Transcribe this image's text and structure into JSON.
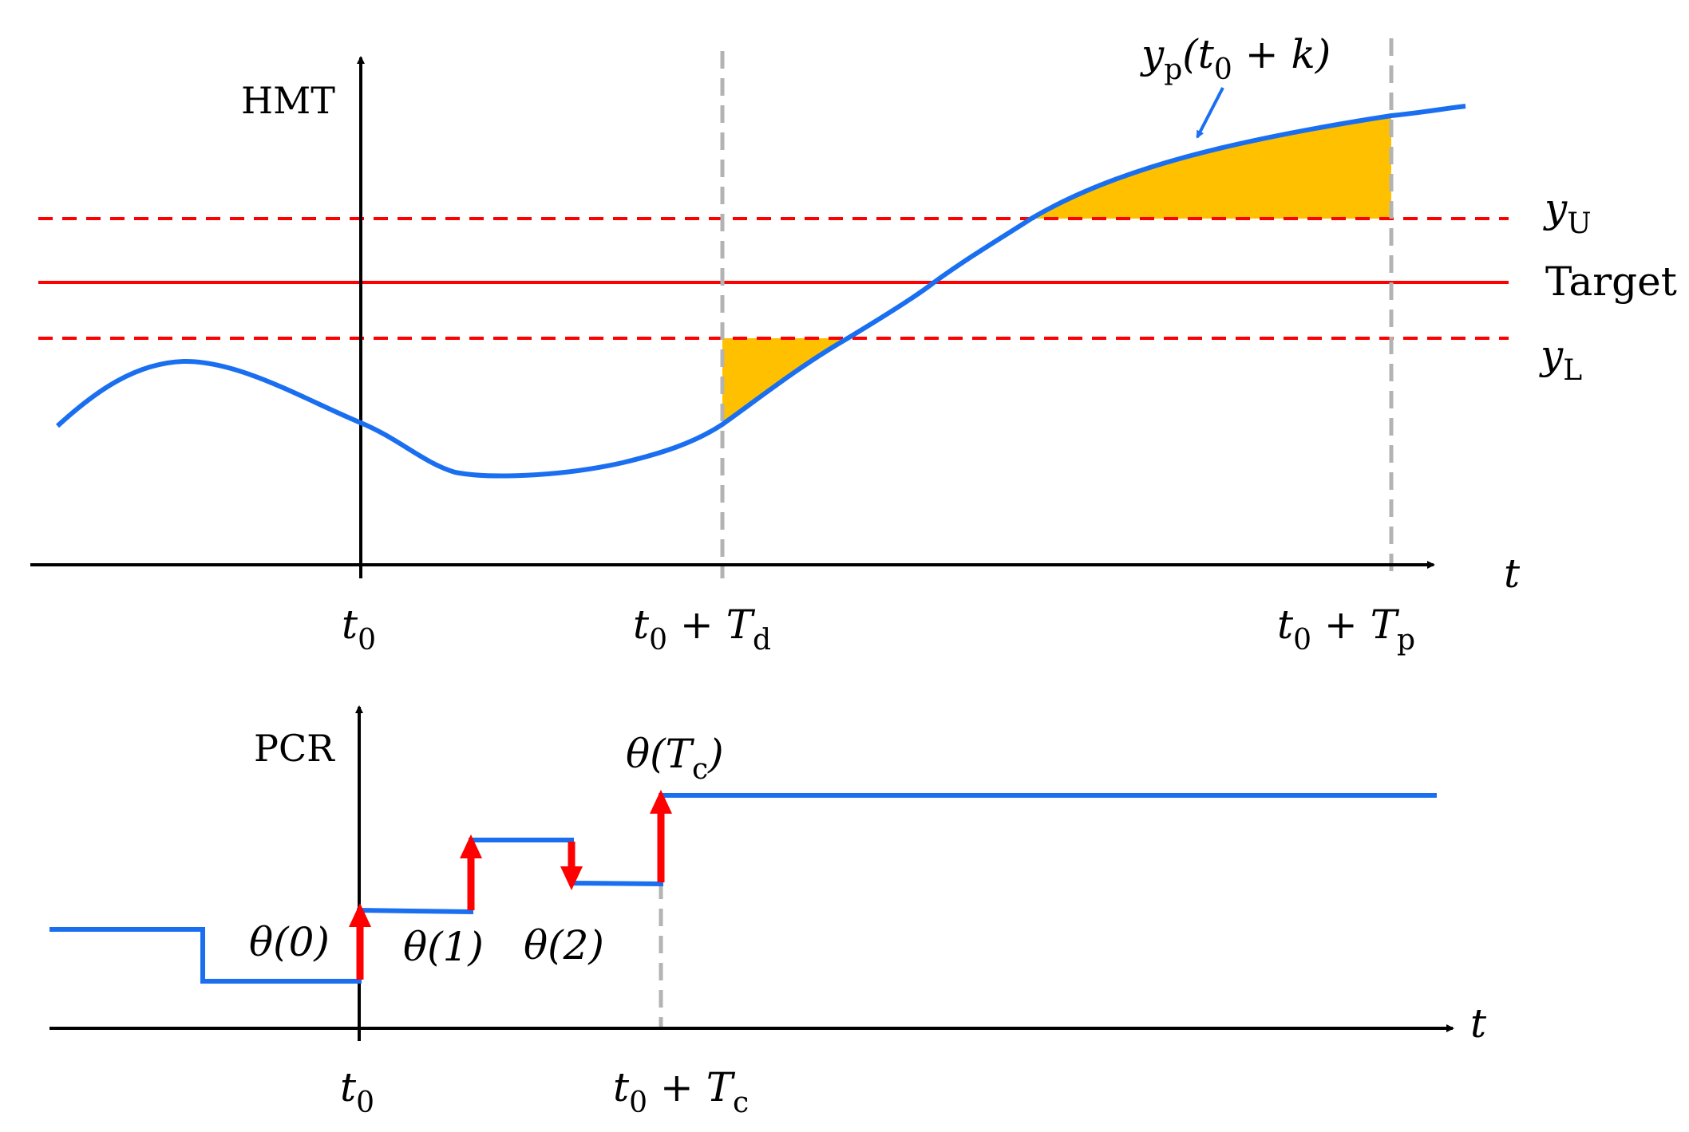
{
  "top_panel": {
    "y_axis_label": "HMT",
    "x_axis_label": "t",
    "curve_label": {
      "main": "y",
      "sub": "p",
      "arg_open": "(t",
      "arg_sub": "0",
      "arg_rest": " + k)"
    },
    "upper_limit_label": {
      "main": "y",
      "sub": "U"
    },
    "target_label": "Target",
    "lower_limit_label": {
      "main": "y",
      "sub": "L"
    },
    "ticks": [
      {
        "main": "t",
        "sub": "0",
        "rest": "",
        "rest_main": "",
        "rest_sub": ""
      },
      {
        "main": "t",
        "sub": "0",
        "rest": " + ",
        "rest_main": "T",
        "rest_sub": "d"
      },
      {
        "main": "t",
        "sub": "0",
        "rest": " + ",
        "rest_main": "T",
        "rest_sub": "p"
      }
    ],
    "colors": {
      "curve": "#1a6ff0",
      "limits": "#ff0000",
      "shade": "#ffc000",
      "marker": "#b3b3b3"
    }
  },
  "bottom_panel": {
    "y_axis_label": "PCR",
    "x_axis_label": "t",
    "step_labels": [
      "θ(0)",
      "θ(1)",
      "θ(2)"
    ],
    "final_label": {
      "main": "θ(T",
      "sub": "c",
      "rest": ")"
    },
    "ticks": [
      {
        "main": "t",
        "sub": "0",
        "rest": "",
        "rest_main": "",
        "rest_sub": ""
      },
      {
        "main": "t",
        "sub": "0",
        "rest": " + ",
        "rest_main": "T",
        "rest_sub": "c"
      }
    ],
    "colors": {
      "signal": "#1a6ff0",
      "arrows": "#ff0000",
      "marker": "#b3b3b3"
    }
  }
}
